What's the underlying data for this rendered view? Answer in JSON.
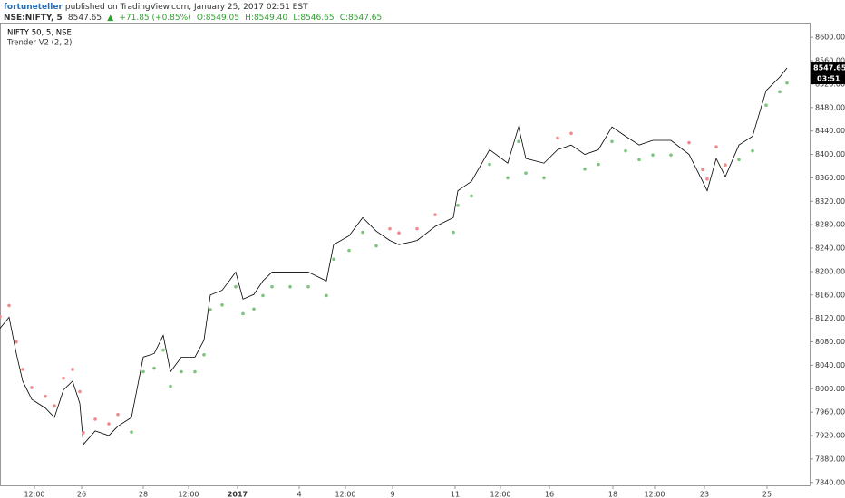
{
  "header": {
    "author": "fortuneteller",
    "published": "published on TradingView.com, January 25, 2017 02:51 EST",
    "symbol": "NSE:NIFTY, 5",
    "price": "8547.65",
    "arrow": "▲",
    "change": "+71.85 (+0.85%)",
    "open": "O:8549.05",
    "high": "H:8549.40",
    "low": "L:8546.65",
    "close": "C:8547.65"
  },
  "chart_data": {
    "type": "line",
    "title": "NIFTY 50, 5, NSE",
    "subtitle": "Trender V2 (2, 2)",
    "price_tag": "8547.65",
    "countdown": "03:51",
    "xlim": [
      0,
      178.6
    ],
    "xticks": [
      {
        "value": 7.6,
        "label": "12:00"
      },
      {
        "value": 18,
        "label": "26"
      },
      {
        "value": 31.6,
        "label": "28"
      },
      {
        "value": 41.6,
        "label": "12:00"
      },
      {
        "value": 52.4,
        "label": "2017"
      },
      {
        "value": 66,
        "label": "4"
      },
      {
        "value": 76.2,
        "label": "12:00"
      },
      {
        "value": 86.6,
        "label": "9"
      },
      {
        "value": 100.4,
        "label": "11"
      },
      {
        "value": 110.4,
        "label": "12:00"
      },
      {
        "value": 121.2,
        "label": "16"
      },
      {
        "value": 135.2,
        "label": "18"
      },
      {
        "value": 144.4,
        "label": "12:00"
      },
      {
        "value": 155.4,
        "label": "23"
      },
      {
        "value": 169.2,
        "label": "25"
      }
    ],
    "ylim": [
      7835,
      8625
    ],
    "yticks": [
      {
        "value": 7840,
        "label": "7840.00"
      },
      {
        "value": 7880,
        "label": "7880.00"
      },
      {
        "value": 7920,
        "label": "7920.00"
      },
      {
        "value": 7960,
        "label": "7960.00"
      },
      {
        "value": 8000,
        "label": "8000.00"
      },
      {
        "value": 8040,
        "label": "8040.00"
      },
      {
        "value": 8080,
        "label": "8080.00"
      },
      {
        "value": 8120,
        "label": "8120.00"
      },
      {
        "value": 8160,
        "label": "8160.00"
      },
      {
        "value": 8200,
        "label": "8200.00"
      },
      {
        "value": 8240,
        "label": "8240.00"
      },
      {
        "value": 8280,
        "label": "8280.00"
      },
      {
        "value": 8320,
        "label": "8320.00"
      },
      {
        "value": 8360,
        "label": "8360.00"
      },
      {
        "value": 8400,
        "label": "8400.00"
      },
      {
        "value": 8440,
        "label": "8440.00"
      },
      {
        "value": 8480,
        "label": "8480.00"
      },
      {
        "value": 8520,
        "label": "8520.00"
      },
      {
        "value": 8560,
        "label": "8560.00"
      },
      {
        "value": 8600,
        "label": "8600.00"
      }
    ],
    "x": [
      0,
      2,
      3.6,
      5,
      7,
      10,
      12,
      14,
      16,
      17.6,
      18.4,
      21,
      24,
      26,
      29,
      31.6,
      34,
      36,
      37.6,
      40,
      43,
      45,
      46.4,
      49,
      52,
      53.6,
      56,
      58,
      60,
      64,
      68,
      72,
      73.6,
      77,
      80,
      83,
      86,
      88,
      92,
      96,
      100,
      101,
      104,
      108,
      112,
      114.4,
      116,
      120,
      123,
      126,
      129,
      132,
      135,
      138,
      141,
      144,
      148,
      152,
      155,
      156,
      158,
      160,
      163,
      166,
      169,
      172,
      173.6
    ],
    "series": [
      {
        "color": "#000000",
        "values": [
          8103,
          8122,
          8060,
          8013,
          7982,
          7967,
          7951,
          7998,
          8013,
          7975,
          7905,
          7928,
          7920,
          7936,
          7951,
          8054,
          8060,
          8091,
          8029,
          8054,
          8054,
          8083,
          8160,
          8168,
          8199,
          8153,
          8161,
          8184,
          8199,
          8199,
          8199,
          8184,
          8246,
          8261,
          8292,
          8269,
          8253,
          8246,
          8253,
          8277,
          8292,
          8338,
          8354,
          8408,
          8385,
          8447,
          8393,
          8385,
          8408,
          8416,
          8400,
          8408,
          8447,
          8431,
          8416,
          8424,
          8424,
          8400,
          8354,
          8338,
          8393,
          8362,
          8416,
          8431,
          8509,
          8532,
          8547.65
        ]
      },
      {
        "style": "dots",
        "values": [
          8123,
          8142,
          8080,
          8033,
          8002,
          7987,
          7971,
          8018,
          8033,
          7995,
          7925,
          7948,
          7940,
          7956,
          7926,
          8029,
          8035,
          8066,
          8004,
          8029,
          8029,
          8058,
          8135,
          8143,
          8174,
          8128,
          8136,
          8159,
          8174,
          8174,
          8174,
          8159,
          8221,
          8236,
          8267,
          8244,
          8273,
          8266,
          8273,
          8297,
          8267,
          8313,
          8329,
          8383,
          8360,
          8422,
          8368,
          8360,
          8428,
          8436,
          8375,
          8383,
          8422,
          8406,
          8391,
          8399,
          8399,
          8420,
          8374,
          8358,
          8413,
          8382,
          8391,
          8406,
          8484,
          8507,
          8522
        ],
        "colors": [
          "#f08a8a",
          "#f08a8a",
          "#f08a8a",
          "#f08a8a",
          "#f08a8a",
          "#f08a8a",
          "#f08a8a",
          "#f08a8a",
          "#f08a8a",
          "#f08a8a",
          "#f08a8a",
          "#f08a8a",
          "#f08a8a",
          "#f08a8a",
          "#7dc47d",
          "#7dc47d",
          "#7dc47d",
          "#7dc47d",
          "#7dc47d",
          "#7dc47d",
          "#7dc47d",
          "#7dc47d",
          "#7dc47d",
          "#7dc47d",
          "#7dc47d",
          "#7dc47d",
          "#7dc47d",
          "#7dc47d",
          "#7dc47d",
          "#7dc47d",
          "#7dc47d",
          "#7dc47d",
          "#7dc47d",
          "#7dc47d",
          "#7dc47d",
          "#7dc47d",
          "#f08a8a",
          "#f08a8a",
          "#f08a8a",
          "#f08a8a",
          "#7dc47d",
          "#7dc47d",
          "#7dc47d",
          "#7dc47d",
          "#7dc47d",
          "#7dc47d",
          "#7dc47d",
          "#7dc47d",
          "#f08a8a",
          "#f08a8a",
          "#7dc47d",
          "#7dc47d",
          "#7dc47d",
          "#7dc47d",
          "#7dc47d",
          "#7dc47d",
          "#7dc47d",
          "#f08a8a",
          "#f08a8a",
          "#f08a8a",
          "#f08a8a",
          "#f08a8a",
          "#7dc47d",
          "#7dc47d",
          "#7dc47d",
          "#7dc47d",
          "#7dc47d"
        ]
      }
    ]
  }
}
